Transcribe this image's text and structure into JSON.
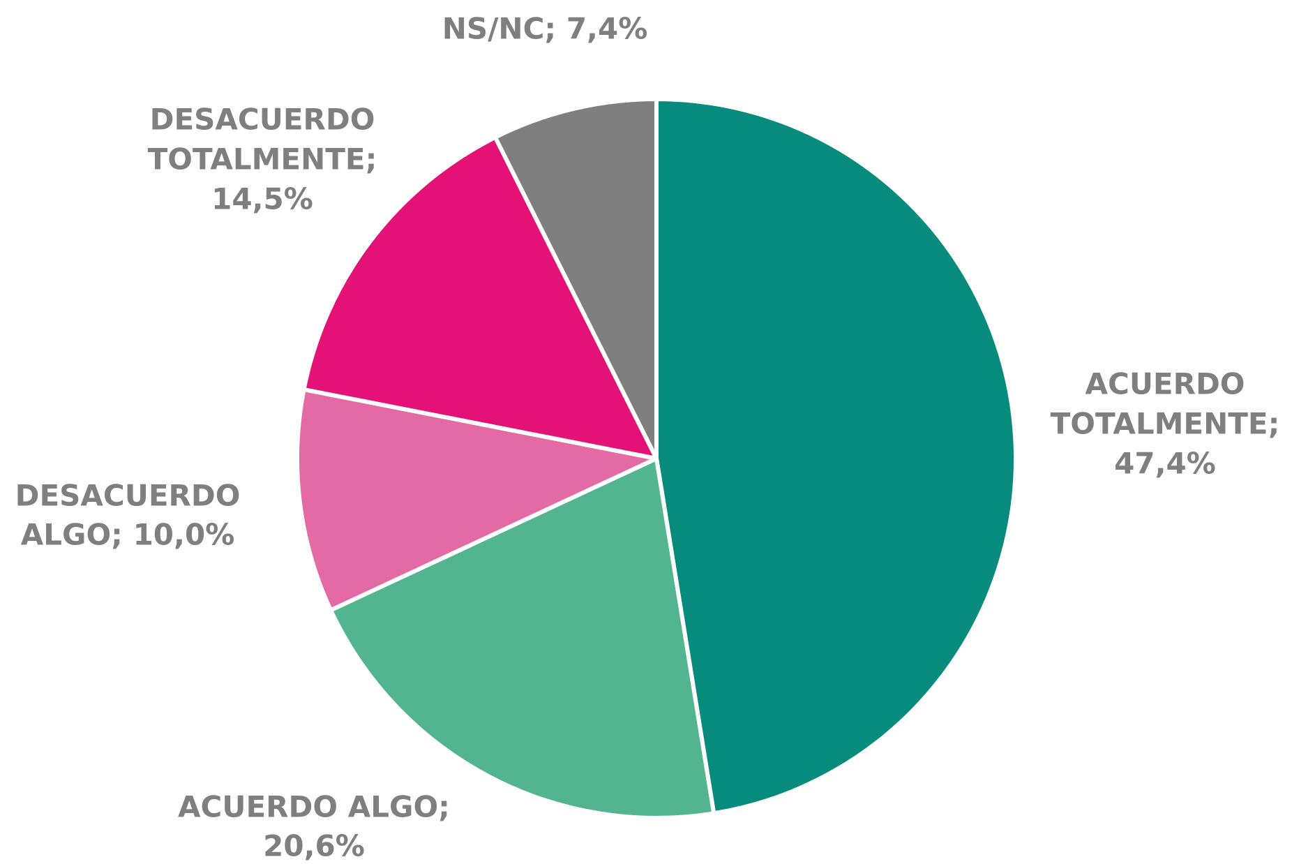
{
  "chart_data": {
    "type": "pie",
    "labels": [
      [
        "ACUERDO",
        "TOTALMENTE;",
        "47,4%"
      ],
      [
        "ACUERDO ALGO;",
        "20,6%"
      ],
      [
        "DESACUERDO",
        "ALGO; 10,0%"
      ],
      [
        "DESACUERDO",
        "TOTALMENTE;",
        "14,5%"
      ],
      [
        "NS/NC; 7,4%"
      ]
    ],
    "values": [
      47.4,
      20.6,
      10.0,
      14.5,
      7.4
    ],
    "colors": [
      "#078b7c",
      "#52b590",
      "#e46aa5",
      "#e41176",
      "#7f7f7f"
    ]
  }
}
